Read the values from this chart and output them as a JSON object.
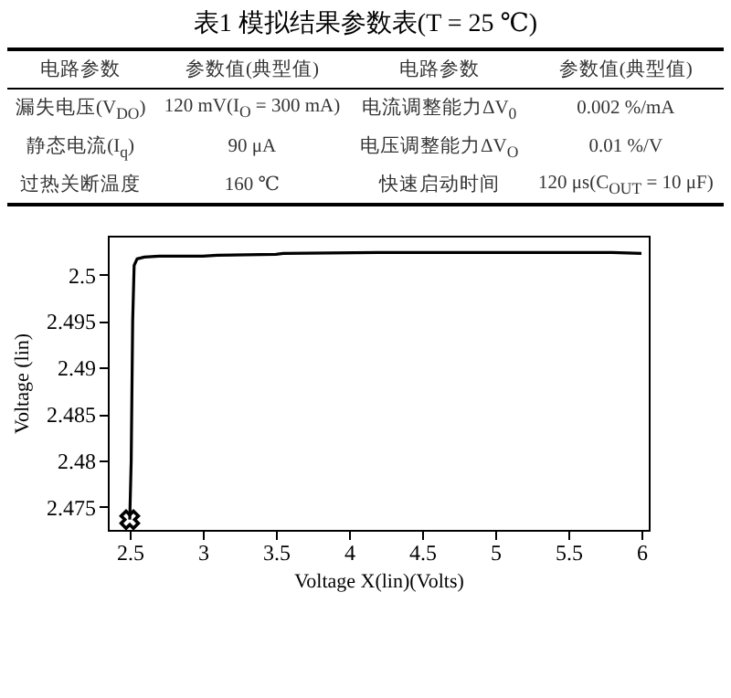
{
  "chart_data": [
    {
      "type": "other",
      "title": "表1  模拟结果参数表(T = 25 ℃)",
      "annotations": [
        "电路参数",
        "参数值(典型值)",
        "电路参数",
        "参数值(典型值)",
        "漏失电压(V$_{DO}$)",
        "120 mV(I$_{O}$ = 300 mA)",
        "电流调整能力ΔV$_{0}$",
        "0.002 %/mA",
        "静态电流(I$_{q}$)",
        "90 μA",
        "电压调整能力ΔV$_{O}$",
        "0.01 %/V",
        "过热关断温度",
        "160 ℃",
        "快速启动时间",
        "120 μs(C$_{OUT}$ = 10 μF)"
      ]
    },
    {
      "type": "line",
      "xlabel": "Voltage X(lin)(Volts)",
      "ylabel": "Voltage (lin)",
      "xlim": [
        2.35,
        6.05
      ],
      "ylim": [
        2.4725,
        2.5042
      ],
      "xticks": [
        2.5,
        3,
        3.5,
        4,
        4.5,
        5,
        5.5,
        6
      ],
      "yticks": [
        2.475,
        2.48,
        2.485,
        2.49,
        2.495,
        2.5
      ],
      "grid": false,
      "series": [
        {
          "type": "line",
          "color": "#000000",
          "marker": "none",
          "x": [
            2.5,
            2.51,
            2.52,
            2.53,
            2.55,
            2.6,
            2.7,
            3.0,
            3.1,
            3.5,
            3.55,
            4.2,
            5.8,
            6.0
          ],
          "values": [
            2.4736,
            2.48,
            2.495,
            2.501,
            2.5017,
            2.5019,
            2.502,
            2.502,
            2.5021,
            2.5022,
            2.5023,
            2.5024,
            2.5024,
            2.5023
          ]
        },
        {
          "type": "scatter",
          "color": "#000000",
          "marker": "cross",
          "x": [
            2.5
          ],
          "values": [
            2.4736
          ]
        }
      ]
    }
  ]
}
